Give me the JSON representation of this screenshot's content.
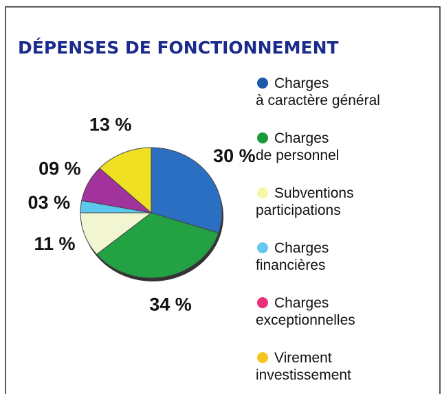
{
  "chart_data": {
    "type": "pie",
    "title": "DÉPENSES DE FONCTIONNEMENT",
    "categories": [
      "Charges\nà caractère général",
      "Charges\nde personnel",
      "Subventions\nparticipations",
      "Charges\nfinancières",
      "Charges\nexceptionnelles",
      "Virement\ninvestissement"
    ],
    "values": [
      30,
      34,
      11,
      3,
      9,
      13
    ],
    "value_labels": [
      "30 %",
      "34 %",
      "11 %",
      "03 %",
      "09 %",
      "13 %"
    ],
    "colors": [
      "#1a5aa8",
      "#1a9a3a",
      "#f6f6a8",
      "#62c8f0",
      "#e8307a",
      "#f8c420"
    ],
    "slice_colors": [
      "#2b6fc2",
      "#22a243",
      "#f2f5d2",
      "#5cc8f0",
      "#a2329c",
      "#f0e024"
    ]
  }
}
